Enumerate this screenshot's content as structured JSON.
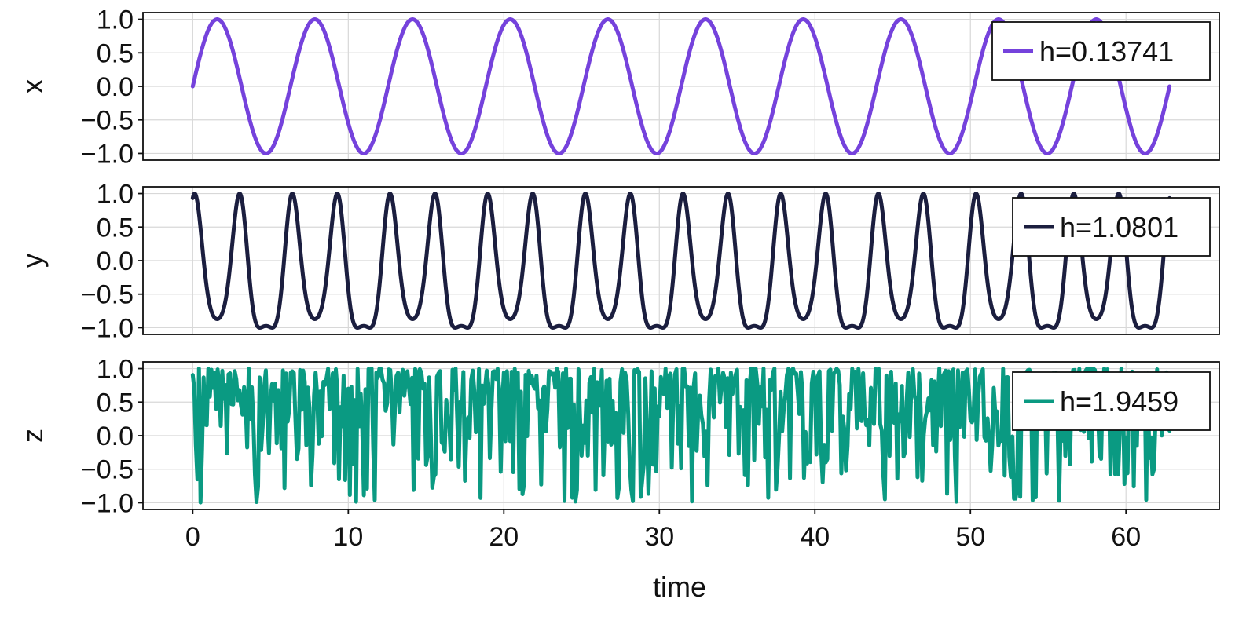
{
  "chart_data": {
    "type": "line",
    "xlabel": "time",
    "xlim": [
      -3.2,
      66
    ],
    "x_ticks": [
      0,
      10,
      20,
      30,
      40,
      50,
      60
    ],
    "x_tick_labels": [
      "0",
      "10",
      "20",
      "30",
      "40",
      "50",
      "60"
    ],
    "grid": true,
    "panels": [
      {
        "id": "x",
        "ylabel": "x",
        "ylim": [
          -1.1,
          1.1
        ],
        "y_ticks": [
          1.0,
          0.5,
          0.0,
          -0.5,
          -1.0
        ],
        "y_tick_labels": [
          "1.0",
          "0.5",
          "0.0",
          "−0.5",
          "−1.0"
        ],
        "series": {
          "name": "h=0.13741",
          "color": "#7542dc",
          "kind": "sine",
          "t_start": 0,
          "t_end": 62.8,
          "period": 6.28
        },
        "legend": {
          "label": "h=0.13741",
          "position": "top-right"
        }
      },
      {
        "id": "y",
        "ylabel": "y",
        "ylim": [
          -1.1,
          1.1
        ],
        "y_ticks": [
          1.0,
          0.5,
          0.0,
          -0.5,
          -1.0
        ],
        "y_tick_labels": [
          "1.0",
          "0.5",
          "0.0",
          "−0.5",
          "−1.0"
        ],
        "series": {
          "name": "h=1.0801",
          "color": "#1b1e3f",
          "kind": "sin-of-3sin",
          "t_start": 0,
          "t_end": 62.8,
          "period": 6.28,
          "amplitude": 3
        },
        "legend": {
          "label": "h=1.0801",
          "position": "top-right"
        }
      },
      {
        "id": "z",
        "ylabel": "z",
        "ylim": [
          -1.1,
          1.1
        ],
        "y_ticks": [
          1.0,
          0.5,
          0.0,
          -0.5,
          -1.0
        ],
        "y_tick_labels": [
          "1.0",
          "0.5",
          "0.0",
          "−0.5",
          "−1.0"
        ],
        "series": {
          "name": "h=1.9459",
          "color": "#0a9a82",
          "kind": "random-like",
          "t_start": 0,
          "t_end": 62.8,
          "step": 0.1,
          "value_range": [
            -1.0,
            1.0
          ]
        },
        "legend": {
          "label": "h=1.9459",
          "position": "top-right"
        }
      }
    ]
  }
}
